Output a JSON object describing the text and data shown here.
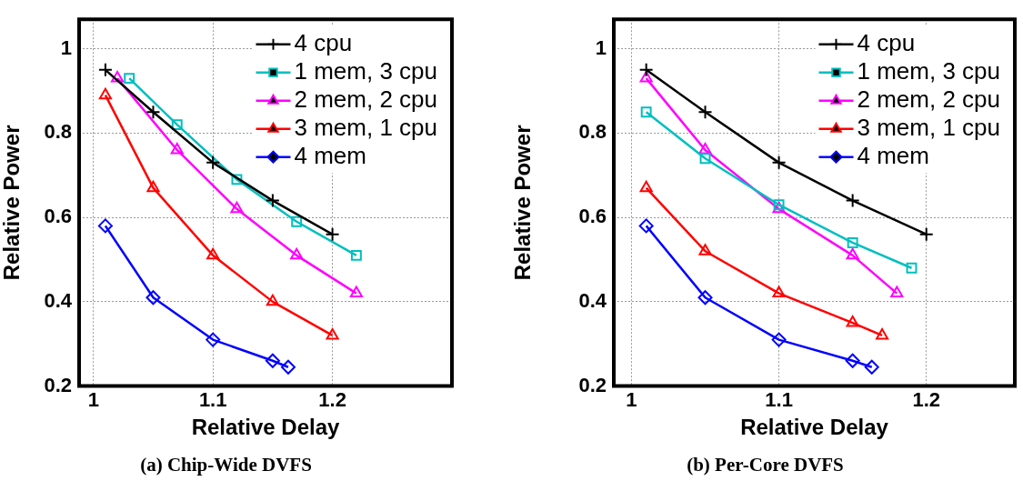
{
  "chart_data": [
    {
      "type": "line",
      "title": "(a) Chip-Wide DVFS",
      "xlabel": "Relative Delay",
      "ylabel": "Relative Power",
      "xlim": [
        0.988,
        1.3
      ],
      "xticks": [
        1,
        1.1,
        1.2
      ],
      "ylim": [
        0.2,
        1.07
      ],
      "yticks": [
        0.2,
        0.4,
        0.6,
        0.8,
        1
      ],
      "grid": true,
      "legend": "top right",
      "series": [
        {
          "name": "4 cpu",
          "color": "#000000",
          "marker": "cross",
          "x": [
            1.01,
            1.05,
            1.1,
            1.15,
            1.2
          ],
          "values": [
            0.95,
            0.85,
            0.73,
            0.64,
            0.56
          ]
        },
        {
          "name": "1 mem, 3 cpu",
          "color": "#00bfbf",
          "marker": "square",
          "x": [
            1.03,
            1.07,
            1.12,
            1.17,
            1.22
          ],
          "values": [
            0.93,
            0.82,
            0.69,
            0.59,
            0.51
          ]
        },
        {
          "name": "2 mem, 2 cpu",
          "color": "#ff00ff",
          "marker": "triangle",
          "x": [
            1.02,
            1.07,
            1.12,
            1.17,
            1.22
          ],
          "values": [
            0.93,
            0.76,
            0.62,
            0.51,
            0.42
          ]
        },
        {
          "name": "3 mem, 1 cpu",
          "color": "#ff0000",
          "marker": "triangle",
          "x": [
            1.01,
            1.05,
            1.1,
            1.15,
            1.2
          ],
          "values": [
            0.89,
            0.67,
            0.51,
            0.4,
            0.32
          ]
        },
        {
          "name": "4 mem",
          "color": "#0000ff",
          "marker": "diamond",
          "x": [
            1.01,
            1.05,
            1.1,
            1.15,
            1.163
          ],
          "values": [
            0.58,
            0.41,
            0.31,
            0.26,
            0.245
          ]
        }
      ]
    },
    {
      "type": "line",
      "title": "(b) Per-Core DVFS",
      "xlabel": "Relative Delay",
      "ylabel": "Relative Power",
      "xlim": [
        0.988,
        1.26
      ],
      "xticks": [
        1,
        1.1,
        1.2
      ],
      "ylim": [
        0.2,
        1.07
      ],
      "yticks": [
        0.2,
        0.4,
        0.6,
        0.8,
        1
      ],
      "grid": true,
      "legend": "top right",
      "series": [
        {
          "name": "4 cpu",
          "color": "#000000",
          "marker": "cross",
          "x": [
            1.01,
            1.05,
            1.1,
            1.15,
            1.2
          ],
          "values": [
            0.95,
            0.85,
            0.73,
            0.64,
            0.56
          ]
        },
        {
          "name": "1 mem, 3 cpu",
          "color": "#00bfbf",
          "marker": "square",
          "x": [
            1.01,
            1.05,
            1.1,
            1.15,
            1.19
          ],
          "values": [
            0.85,
            0.74,
            0.63,
            0.54,
            0.48
          ]
        },
        {
          "name": "2 mem, 2 cpu",
          "color": "#ff00ff",
          "marker": "triangle",
          "x": [
            1.01,
            1.05,
            1.1,
            1.15,
            1.18
          ],
          "values": [
            0.93,
            0.76,
            0.62,
            0.51,
            0.42
          ]
        },
        {
          "name": "3 mem, 1 cpu",
          "color": "#ff0000",
          "marker": "triangle",
          "x": [
            1.01,
            1.05,
            1.1,
            1.15,
            1.17
          ],
          "values": [
            0.67,
            0.52,
            0.42,
            0.35,
            0.32
          ]
        },
        {
          "name": "4 mem",
          "color": "#0000ff",
          "marker": "diamond",
          "x": [
            1.01,
            1.05,
            1.1,
            1.15,
            1.163
          ],
          "values": [
            0.58,
            0.41,
            0.31,
            0.26,
            0.245
          ]
        }
      ]
    }
  ]
}
